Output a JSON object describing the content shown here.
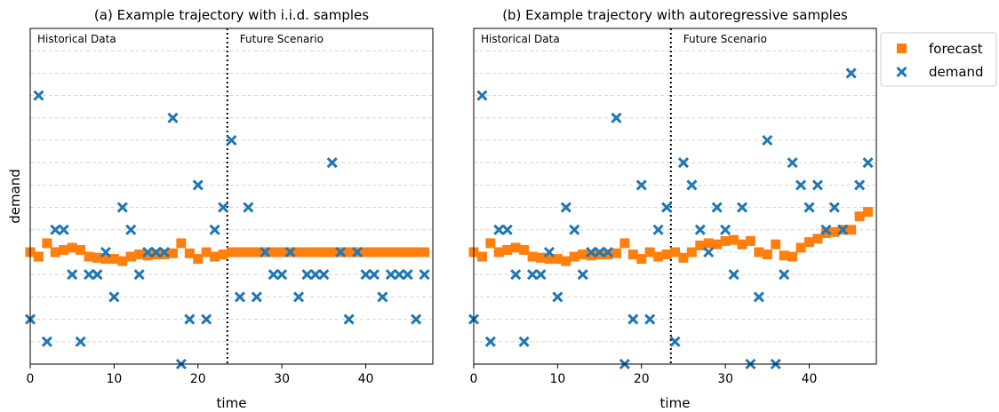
{
  "figure": {
    "legend": {
      "placement": "outside-right",
      "entries": [
        {
          "label": "forecast",
          "marker": "square",
          "color": "#ff7f0e"
        },
        {
          "label": "demand",
          "marker": "x",
          "color": "#1f77b4"
        }
      ]
    }
  },
  "chart_data": [
    {
      "type": "scatter",
      "title": "(a) Example trajectory with i.i.d. samples",
      "xlabel": "time",
      "ylabel": "demand",
      "xlim": [
        0,
        48
      ],
      "ylim": [
        0,
        15
      ],
      "xticks": [
        0,
        10,
        20,
        30,
        40
      ],
      "y_tick_labels_shown": false,
      "grid": "horizontal-dashed",
      "split_x": 23.5,
      "split_line_style": "dotted",
      "region_labels": [
        "Historical Data",
        "Future Scenario"
      ],
      "series": [
        {
          "name": "forecast",
          "marker": "square",
          "color": "#ff7f0e",
          "x": [
            0,
            1,
            2,
            3,
            4,
            5,
            6,
            7,
            8,
            9,
            10,
            11,
            12,
            13,
            14,
            15,
            16,
            17,
            18,
            19,
            20,
            21,
            22,
            23,
            24,
            25,
            26,
            27,
            28,
            29,
            30,
            31,
            32,
            33,
            34,
            35,
            36,
            37,
            38,
            39,
            40,
            41,
            42,
            43,
            44,
            45,
            46,
            47
          ],
          "y": [
            5.0,
            4.8,
            5.4,
            5.0,
            5.1,
            5.2,
            5.1,
            4.8,
            4.75,
            4.7,
            4.7,
            4.6,
            4.8,
            4.9,
            4.85,
            4.9,
            4.9,
            4.95,
            5.4,
            4.95,
            4.7,
            5.0,
            4.8,
            4.9,
            5.0,
            5.0,
            5.0,
            5.0,
            5.0,
            5.0,
            5.0,
            5.0,
            5.0,
            5.0,
            5.0,
            5.0,
            5.0,
            5.0,
            5.0,
            5.0,
            5.0,
            5.0,
            5.0,
            5.0,
            5.0,
            5.0,
            5.0,
            5.0
          ]
        },
        {
          "name": "demand",
          "marker": "x",
          "color": "#1f77b4",
          "x": [
            0,
            1,
            2,
            3,
            4,
            5,
            6,
            7,
            8,
            9,
            10,
            11,
            12,
            13,
            14,
            15,
            16,
            17,
            18,
            19,
            20,
            21,
            22,
            23,
            24,
            25,
            26,
            27,
            28,
            29,
            30,
            31,
            32,
            33,
            34,
            35,
            36,
            37,
            38,
            39,
            40,
            41,
            42,
            43,
            44,
            45,
            46,
            47
          ],
          "y": [
            2,
            12,
            1,
            6,
            6,
            4,
            1,
            4,
            4,
            5,
            3,
            7,
            6,
            4,
            5,
            5,
            5,
            11,
            0,
            2,
            8,
            2,
            6,
            7,
            10,
            3,
            7,
            3,
            5,
            4,
            4,
            5,
            3,
            4,
            4,
            4,
            9,
            5,
            2,
            5,
            4,
            4,
            3,
            4,
            4,
            4,
            2,
            4
          ]
        }
      ]
    },
    {
      "type": "scatter",
      "title": "(b) Example trajectory with autoregressive samples",
      "xlabel": "time",
      "ylabel": "",
      "xlim": [
        0,
        48
      ],
      "ylim": [
        0,
        15
      ],
      "xticks": [
        0,
        10,
        20,
        30,
        40
      ],
      "y_tick_labels_shown": false,
      "grid": "horizontal-dashed",
      "split_x": 23.5,
      "split_line_style": "dotted",
      "region_labels": [
        "Historical Data",
        "Future Scenario"
      ],
      "series": [
        {
          "name": "forecast",
          "marker": "square",
          "color": "#ff7f0e",
          "x": [
            0,
            1,
            2,
            3,
            4,
            5,
            6,
            7,
            8,
            9,
            10,
            11,
            12,
            13,
            14,
            15,
            16,
            17,
            18,
            19,
            20,
            21,
            22,
            23,
            24,
            25,
            26,
            27,
            28,
            29,
            30,
            31,
            32,
            33,
            34,
            35,
            36,
            37,
            38,
            39,
            40,
            41,
            42,
            43,
            44,
            45,
            46,
            47
          ],
          "y": [
            5.0,
            4.8,
            5.4,
            5.0,
            5.1,
            5.2,
            5.1,
            4.8,
            4.75,
            4.7,
            4.7,
            4.6,
            4.8,
            4.9,
            4.85,
            4.9,
            4.9,
            4.95,
            5.4,
            4.9,
            4.7,
            5.0,
            4.8,
            4.9,
            5.0,
            4.75,
            5.0,
            5.3,
            5.4,
            5.35,
            5.5,
            5.55,
            5.35,
            5.5,
            5.0,
            4.9,
            5.35,
            4.85,
            4.8,
            5.2,
            5.45,
            5.6,
            5.85,
            5.9,
            6.0,
            6.0,
            6.6,
            6.8
          ]
        },
        {
          "name": "demand",
          "marker": "x",
          "color": "#1f77b4",
          "x": [
            0,
            1,
            2,
            3,
            4,
            5,
            6,
            7,
            8,
            9,
            10,
            11,
            12,
            13,
            14,
            15,
            16,
            17,
            18,
            19,
            20,
            21,
            22,
            23,
            24,
            25,
            26,
            27,
            28,
            29,
            30,
            31,
            32,
            33,
            34,
            35,
            36,
            37,
            38,
            39,
            40,
            41,
            42,
            43,
            44,
            45,
            46,
            47
          ],
          "y": [
            2,
            12,
            1,
            6,
            6,
            4,
            1,
            4,
            4,
            5,
            3,
            7,
            6,
            4,
            5,
            5,
            5,
            11,
            0,
            2,
            8,
            2,
            6,
            7,
            1,
            9,
            8,
            6,
            5,
            7,
            6,
            4,
            7,
            0,
            3,
            10,
            0,
            4,
            9,
            8,
            7,
            8,
            6,
            7,
            6,
            13,
            8,
            9
          ]
        }
      ]
    }
  ]
}
